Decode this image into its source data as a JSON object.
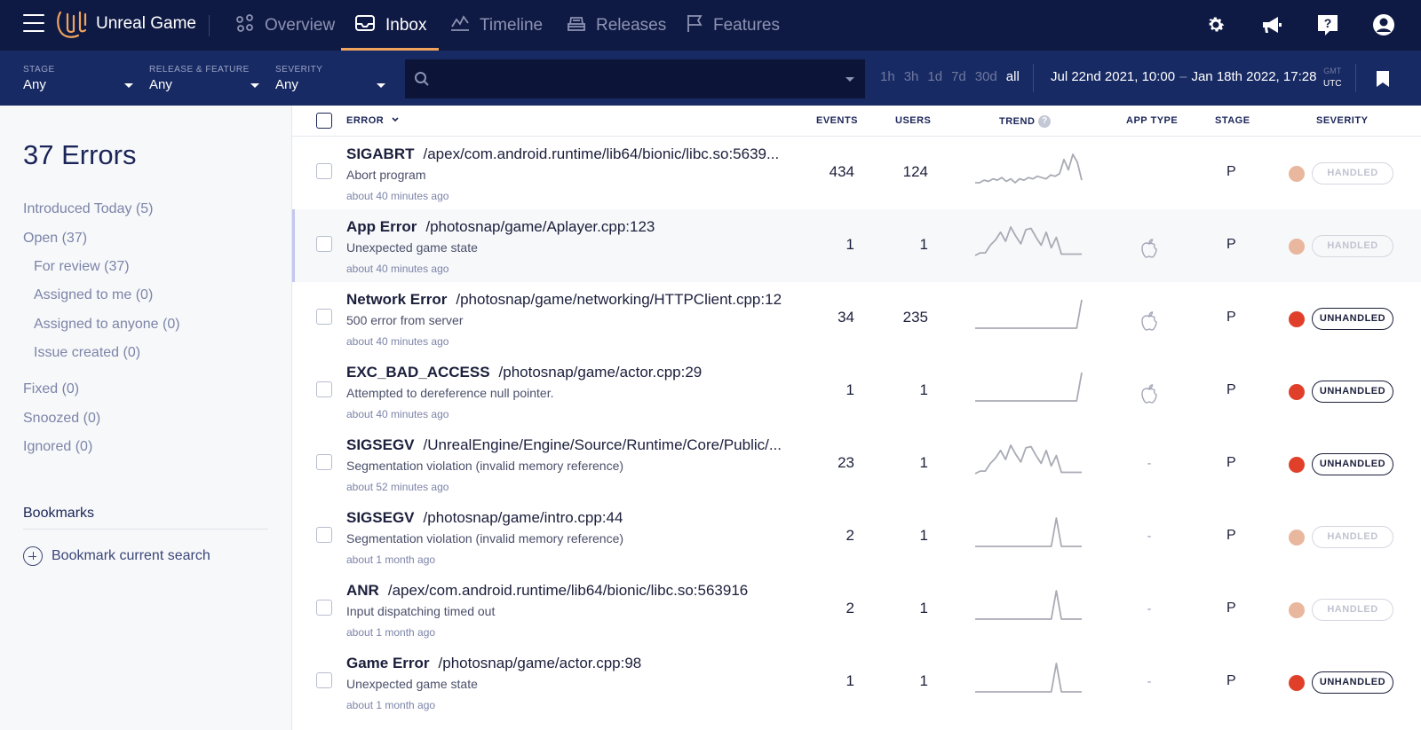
{
  "header": {
    "app_name": "Unreal Game",
    "nav": [
      {
        "label": "Overview",
        "icon": "overview-icon",
        "active": false
      },
      {
        "label": "Inbox",
        "icon": "inbox-icon",
        "active": true
      },
      {
        "label": "Timeline",
        "icon": "timeline-icon",
        "active": false
      },
      {
        "label": "Releases",
        "icon": "releases-icon",
        "active": false
      },
      {
        "label": "Features",
        "icon": "flag-icon",
        "active": false
      }
    ],
    "right_icons": [
      "gear-icon",
      "megaphone-icon",
      "help-icon",
      "user-icon"
    ],
    "accent": "#f0a35c"
  },
  "filters": {
    "stage": {
      "label": "STAGE",
      "value": "Any"
    },
    "release": {
      "label": "RELEASE & FEATURE",
      "value": "Any"
    },
    "severity": {
      "label": "SEVERITY",
      "value": "Any"
    },
    "search_placeholder": "",
    "ranges": [
      "1h",
      "3h",
      "1d",
      "7d",
      "30d",
      "all"
    ],
    "selected_range": "all",
    "date_from": "Jul 22nd 2021, 10:00",
    "date_sep": "–",
    "date_to": "Jan 18th 2022, 17:28",
    "tz_top": "GMT",
    "tz_bottom": "UTC"
  },
  "sidebar": {
    "title": "37 Errors",
    "items": [
      {
        "label": "Introduced Today (5)"
      },
      {
        "label": "Open (37)"
      },
      {
        "label": "For review (37)"
      },
      {
        "label": "Assigned to me (0)"
      },
      {
        "label": "Assigned to anyone (0)"
      },
      {
        "label": "Issue created (0)"
      },
      {
        "label": "Fixed (0)"
      },
      {
        "label": "Snoozed (0)"
      },
      {
        "label": "Ignored (0)"
      }
    ],
    "bookmarks_heading": "Bookmarks",
    "bookmark_action": "Bookmark current search"
  },
  "table": {
    "columns": {
      "error": "ERROR",
      "events": "EVENTS",
      "users": "USERS",
      "trend": "TREND",
      "app_type": "APP TYPE",
      "stage": "STAGE",
      "severity": "SEVERITY"
    },
    "rows": [
      {
        "type": "SIGABRT",
        "location": "/apex/com.android.runtime/lib64/bionic/libc.so:5639...",
        "message": "Abort program",
        "time": "about 40 minutes ago",
        "events": "434",
        "users": "124",
        "app_type": "",
        "stage": "P",
        "severity": "HANDLED",
        "sev_color": "#e8b79e",
        "trend": [
          0,
          0,
          2,
          1,
          3,
          2,
          4,
          1,
          3,
          0,
          3,
          2,
          4,
          3,
          5,
          4,
          3,
          6,
          5,
          7,
          18,
          10,
          22,
          16,
          2
        ]
      },
      {
        "type": "App Error",
        "location": "/photosnap/game/Aplayer.cpp:123",
        "message": "Unexpected game state",
        "time": "about 40 minutes ago",
        "events": "1",
        "users": "1",
        "app_type": "apple",
        "stage": "P",
        "severity": "HANDLED",
        "sev_color": "#e8b79e",
        "trend": [
          0,
          2,
          2,
          8,
          12,
          18,
          11,
          22,
          15,
          9,
          20,
          21,
          14,
          8,
          18,
          6,
          14,
          1,
          1,
          1,
          1,
          1
        ]
      },
      {
        "type": "Network Error",
        "location": "/photosnap/game/networking/HTTPClient.cpp:12",
        "message": "500 error from server",
        "time": "about 40 minutes ago",
        "events": "34",
        "users": "235",
        "app_type": "apple",
        "stage": "P",
        "severity": "UNHANDLED",
        "sev_color": "#e0402a",
        "trend": [
          0,
          0,
          0,
          0,
          0,
          0,
          0,
          0,
          0,
          0,
          0,
          0,
          0,
          0,
          0,
          0,
          0,
          0,
          0,
          0,
          0,
          22
        ]
      },
      {
        "type": "EXC_BAD_ACCESS",
        "location": "/photosnap/game/actor.cpp:29",
        "message": "Attempted to dereference null pointer.",
        "time": "about 40 minutes ago",
        "events": "1",
        "users": "1",
        "app_type": "apple",
        "stage": "P",
        "severity": "UNHANDLED",
        "sev_color": "#e0402a",
        "trend": [
          0,
          0,
          0,
          0,
          0,
          0,
          0,
          0,
          0,
          0,
          0,
          0,
          0,
          0,
          0,
          0,
          0,
          0,
          0,
          0,
          0,
          22
        ]
      },
      {
        "type": "SIGSEGV",
        "location": "/UnrealEngine/Engine/Source/Runtime/Core/Public/...",
        "message": "Segmentation violation (invalid memory reference)",
        "time": "about 52 minutes ago",
        "events": "23",
        "users": "1",
        "app_type": "-",
        "stage": "P",
        "severity": "UNHANDLED",
        "sev_color": "#e0402a",
        "trend": [
          0,
          2,
          2,
          8,
          12,
          18,
          11,
          22,
          15,
          9,
          20,
          21,
          14,
          8,
          18,
          6,
          14,
          1,
          1,
          1,
          1,
          1
        ]
      },
      {
        "type": "SIGSEGV",
        "location": "/photosnap/game/intro.cpp:44",
        "message": "Segmentation violation (invalid memory reference)",
        "time": "about 1 month ago",
        "events": "2",
        "users": "1",
        "app_type": "-",
        "stage": "P",
        "severity": "HANDLED",
        "sev_color": "#e8b79e",
        "trend": [
          0,
          0,
          0,
          0,
          0,
          0,
          0,
          0,
          0,
          0,
          0,
          0,
          0,
          0,
          0,
          0,
          22,
          0,
          0,
          0,
          0,
          0
        ]
      },
      {
        "type": "ANR",
        "location": "/apex/com.android.runtime/lib64/bionic/libc.so:563916",
        "message": "Input dispatching timed out",
        "time": "about 1 month ago",
        "events": "2",
        "users": "1",
        "app_type": "-",
        "stage": "P",
        "severity": "HANDLED",
        "sev_color": "#e8b79e",
        "trend": [
          0,
          0,
          0,
          0,
          0,
          0,
          0,
          0,
          0,
          0,
          0,
          0,
          0,
          0,
          0,
          0,
          22,
          0,
          0,
          0,
          0,
          0
        ]
      },
      {
        "type": "Game Error",
        "location": "/photosnap/game/actor.cpp:98",
        "message": "Unexpected game state",
        "time": "about 1 month ago",
        "events": "1",
        "users": "1",
        "app_type": "-",
        "stage": "P",
        "severity": "UNHANDLED",
        "sev_color": "#e0402a",
        "trend": [
          0,
          0,
          0,
          0,
          0,
          0,
          0,
          0,
          0,
          0,
          0,
          0,
          0,
          0,
          0,
          0,
          22,
          0,
          0,
          0,
          0,
          0
        ]
      }
    ]
  }
}
